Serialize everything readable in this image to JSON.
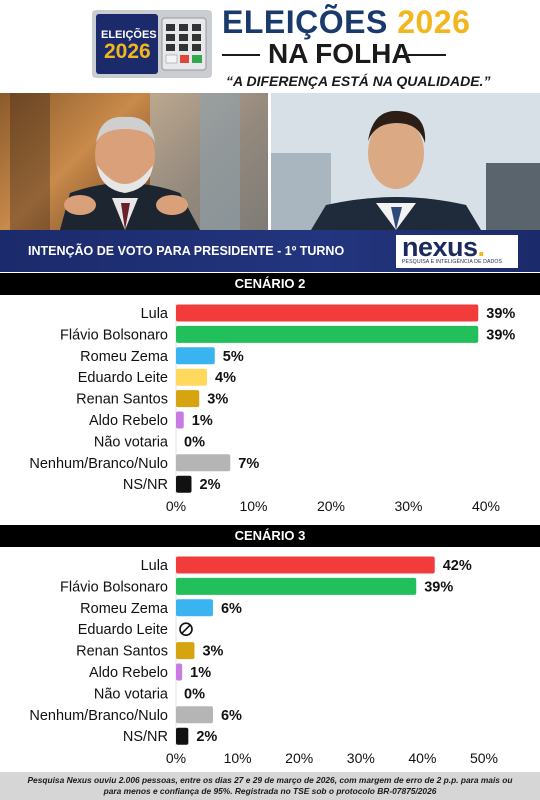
{
  "header": {
    "logo_label_1": "ELEIÇÕES",
    "logo_label_2": "2026",
    "title_part1": "ELEIÇÕES ",
    "title_part2": "2026",
    "title_line2": "NA FOLHA",
    "tagline": "“A DIFERENÇA ESTÁ NA QUALIDADE.”"
  },
  "banner": {
    "title": "INTENÇÃO DE VOTO PARA PRESIDENTE - 1º TURNO",
    "brand": "nexus",
    "brand_tagline": "PESQUISA E INTELIGÊNCIA DE DADOS"
  },
  "colors": {
    "lula": "#f23c3c",
    "flavio": "#22c05a",
    "zema": "#3ab4f0",
    "leite": "#ffd95e",
    "renan": "#d6a410",
    "aldo": "#c87be0",
    "nao_votaria": "#cccccc",
    "nenhum": "#b5b5b5",
    "nsnr": "#111111"
  },
  "chart_data": [
    {
      "type": "bar",
      "orientation": "horizontal",
      "title": "CENÁRIO 2",
      "categories": [
        "Lula",
        "Flávio Bolsonaro",
        "Romeu Zema",
        "Eduardo Leite",
        "Renan Santos",
        "Aldo Rebelo",
        "Não votaria",
        "Nenhum/Branco/Nulo",
        "NS/NR"
      ],
      "values": [
        39,
        39,
        5,
        4,
        3,
        1,
        0,
        7,
        2
      ],
      "value_labels": [
        "39%",
        "39%",
        "5%",
        "4%",
        "3%",
        "1%",
        "0%",
        "7%",
        "2%"
      ],
      "xlim": [
        0,
        40
      ],
      "xticks": [
        "0%",
        "10%",
        "20%",
        "30%",
        "40%"
      ],
      "grid": false
    },
    {
      "type": "bar",
      "orientation": "horizontal",
      "title": "CENÁRIO 3",
      "categories": [
        "Lula",
        "Flávio Bolsonaro",
        "Romeu Zema",
        "Eduardo Leite",
        "Renan Santos",
        "Aldo Rebelo",
        "Não votaria",
        "Nenhum/Branco/Nulo",
        "NS/NR"
      ],
      "values": [
        42,
        39,
        6,
        null,
        3,
        1,
        0,
        6,
        2
      ],
      "value_labels": [
        "42%",
        "39%",
        "6%",
        "",
        "3%",
        "1%",
        "0%",
        "6%",
        "2%"
      ],
      "xlim": [
        0,
        50
      ],
      "xticks": [
        "0%",
        "10%",
        "20%",
        "30%",
        "40%",
        "50%"
      ],
      "grid": false
    }
  ],
  "footer": {
    "text": "Pesquisa Nexus ouviu 2.006 pessoas, entre os dias 27 e 29 de março de 2026, com margem de erro de 2 p.p. para mais ou para menos e confiança de 95%. Registrada no TSE sob o protocolo BR-07875/2026"
  }
}
